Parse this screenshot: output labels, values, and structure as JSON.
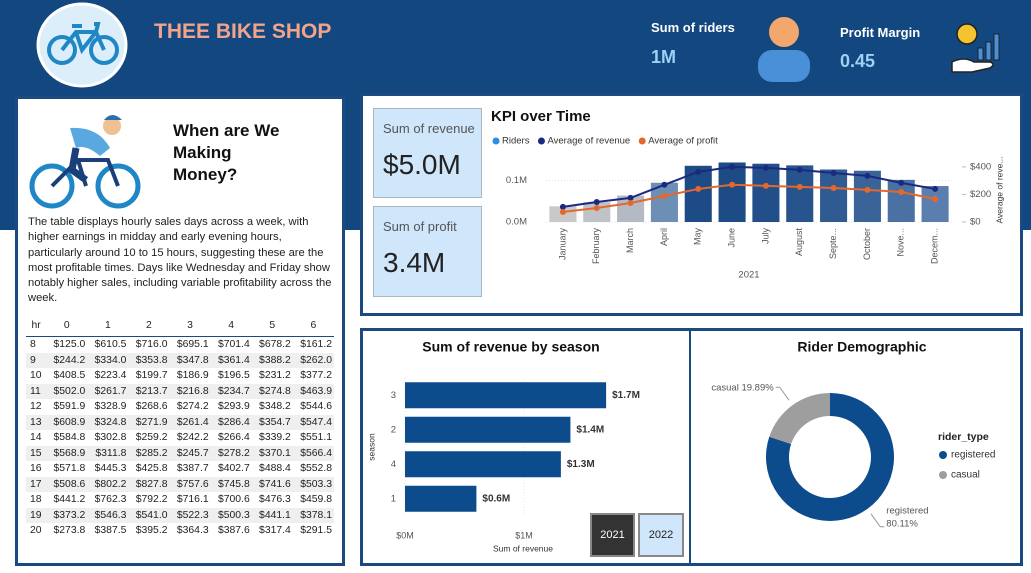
{
  "header": {
    "title": "THEE BIKE SHOP",
    "kpis": [
      {
        "label": "Sum of riders",
        "value": "1M"
      },
      {
        "label": "Profit Margin",
        "value": "0.45"
      }
    ]
  },
  "story": {
    "title": "When are We Making Money?",
    "text": "The table displays hourly sales days across a week, with higher earnings in midday and early evening hours, particularly around 10 to 15 hours, suggesting these are the most profitable times. Days like Wednesday and Friday show notably higher sales, including variable profitability across the week."
  },
  "table": {
    "columns": [
      "hr",
      "0",
      "1",
      "2",
      "3",
      "4",
      "5",
      "6"
    ],
    "rows": [
      [
        "8",
        "$125.0",
        "$610.5",
        "$716.0",
        "$695.1",
        "$701.4",
        "$678.2",
        "$161.2"
      ],
      [
        "9",
        "$244.2",
        "$334.0",
        "$353.8",
        "$347.8",
        "$361.4",
        "$388.2",
        "$262.0"
      ],
      [
        "10",
        "$408.5",
        "$223.4",
        "$199.7",
        "$186.9",
        "$196.5",
        "$231.2",
        "$377.2"
      ],
      [
        "11",
        "$502.0",
        "$261.7",
        "$213.7",
        "$216.8",
        "$234.7",
        "$274.8",
        "$463.9"
      ],
      [
        "12",
        "$591.9",
        "$328.9",
        "$268.6",
        "$274.2",
        "$293.9",
        "$348.2",
        "$544.6"
      ],
      [
        "13",
        "$608.9",
        "$324.8",
        "$271.9",
        "$261.4",
        "$286.4",
        "$354.7",
        "$547.4"
      ],
      [
        "14",
        "$584.8",
        "$302.8",
        "$259.2",
        "$242.2",
        "$266.4",
        "$339.2",
        "$551.1"
      ],
      [
        "15",
        "$568.9",
        "$311.8",
        "$285.2",
        "$245.7",
        "$278.2",
        "$370.1",
        "$566.4"
      ],
      [
        "16",
        "$571.8",
        "$445.3",
        "$425.8",
        "$387.7",
        "$402.7",
        "$488.4",
        "$552.8"
      ],
      [
        "17",
        "$508.6",
        "$802.2",
        "$827.8",
        "$757.6",
        "$745.8",
        "$741.6",
        "$503.3"
      ],
      [
        "18",
        "$441.2",
        "$762.3",
        "$792.2",
        "$716.1",
        "$700.6",
        "$476.3",
        "$459.8"
      ],
      [
        "19",
        "$373.2",
        "$546.3",
        "$541.0",
        "$522.3",
        "$500.3",
        "$441.1",
        "$378.1"
      ],
      [
        "20",
        "$273.8",
        "$387.5",
        "$395.2",
        "$364.3",
        "$387.6",
        "$317.4",
        "$291.5"
      ]
    ]
  },
  "cards": [
    {
      "label": "Sum of revenue",
      "value": "$5.0M"
    },
    {
      "label": "Sum of profit",
      "value": "3.4M"
    }
  ],
  "filters": {
    "years": [
      "2021",
      "2022"
    ]
  },
  "chart_data": [
    {
      "type": "combo",
      "title": "KPI over Time",
      "x_label": "2021",
      "y2_label": "Average of reve...",
      "categories": [
        "January",
        "February",
        "March",
        "April",
        "May",
        "June",
        "July",
        "August",
        "Septe...",
        "October",
        "Nove...",
        "Decem..."
      ],
      "ylim": [
        0,
        0.15
      ],
      "yticks": [
        {
          "value": 0,
          "label": "0.0M"
        },
        {
          "value": 0.1,
          "label": "0.1M"
        }
      ],
      "y2lim": [
        0,
        450
      ],
      "y2ticks": [
        {
          "value": 0,
          "label": "$0"
        },
        {
          "value": 200,
          "label": "$200"
        },
        {
          "value": 400,
          "label": "$400"
        }
      ],
      "series": [
        {
          "name": "Riders",
          "type": "bar",
          "color": "#2b8fe0",
          "colors": [
            "#c9c9c9",
            "#bfc3c8",
            "#b3bac3",
            "#6d8fb5",
            "#1d4b85",
            "#1d4b85",
            "#224f89",
            "#27548c",
            "#2f5b92",
            "#3a6498",
            "#4a71a2",
            "#5a7ead"
          ],
          "values": [
            0.038,
            0.048,
            0.064,
            0.095,
            0.136,
            0.144,
            0.141,
            0.137,
            0.127,
            0.124,
            0.102,
            0.087
          ]
        },
        {
          "name": "Average of revenue",
          "type": "line",
          "axis": "y2",
          "color": "#1b2a80",
          "values": [
            110,
            145,
            175,
            270,
            364,
            400,
            393,
            378,
            356,
            335,
            284,
            240
          ]
        },
        {
          "name": "Average of profit",
          "type": "line",
          "axis": "y2",
          "color": "#e4682c",
          "values": [
            73,
            102,
            138,
            189,
            240,
            270,
            262,
            255,
            247,
            233,
            218,
            167
          ]
        }
      ]
    },
    {
      "type": "hbar",
      "title": "Sum of revenue by season",
      "x_label": "Sum of revenue",
      "y_label": "season",
      "categories": [
        "3",
        "2",
        "4",
        "1"
      ],
      "values": [
        1.69,
        1.39,
        1.31,
        0.6
      ],
      "value_labels": [
        "$1.7M",
        "$1.4M",
        "$1.3M",
        "$0.6M"
      ],
      "color": "#0d4c8c",
      "xlim": [
        0,
        2
      ],
      "xticks": [
        {
          "value": 0,
          "label": "$0M"
        },
        {
          "value": 1,
          "label": "$1M"
        }
      ]
    },
    {
      "type": "donut",
      "title": "Rider Demographic",
      "legend_title": "rider_type",
      "categories": [
        "registered",
        "casual"
      ],
      "values": [
        80.11,
        19.89
      ],
      "value_labels": [
        "80.11%",
        "19.89%"
      ],
      "colors": [
        "#0d4c8c",
        "#9e9e9e"
      ]
    }
  ]
}
